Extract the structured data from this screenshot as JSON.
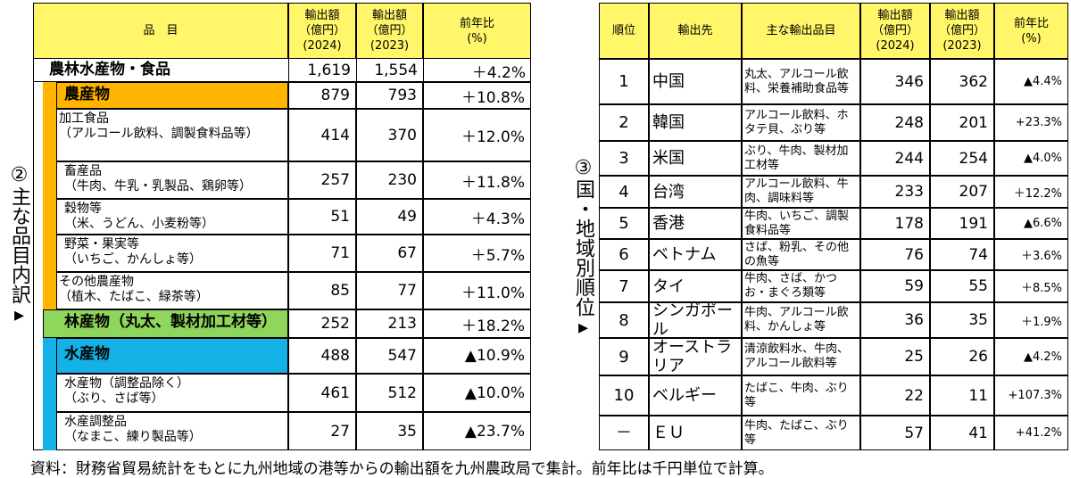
{
  "left_label": "②主な品目内訳▸",
  "right_label": "③国・地域別順位▸",
  "left_table": {
    "headers": {
      "item": "品　目",
      "export_2024": "輸出額\n（億円）\n(2024)",
      "export_2023": "輸出額\n（億円）\n(2023)",
      "yoy": "前年比\n(%)"
    },
    "rows": [
      {
        "label": "農林水産物・食品",
        "v2024": "1,619",
        "v2023": "1,554",
        "yoy": "＋4.2%"
      },
      {
        "label": "農産物",
        "v2024": "879",
        "v2023": "793",
        "yoy": "＋10.8%"
      },
      {
        "label": "加工食品\n（アルコール飲料、調製食料品等）",
        "v2024": "414",
        "v2023": "370",
        "yoy": "＋12.0%"
      },
      {
        "label": "畜産品\n（牛肉、牛乳・乳製品、鶏卵等）",
        "v2024": "257",
        "v2023": "230",
        "yoy": "＋11.8%"
      },
      {
        "label": "穀物等\n（米、うどん、小麦粉等）",
        "v2024": "51",
        "v2023": "49",
        "yoy": "＋4.3%"
      },
      {
        "label": "野菜・果実等\n（いちご、かんしょ等）",
        "v2024": "71",
        "v2023": "67",
        "yoy": "＋5.7%"
      },
      {
        "label": "その他農産物\n（植木、たばこ、緑茶等）",
        "v2024": "85",
        "v2023": "77",
        "yoy": "＋11.0%"
      },
      {
        "label": "林産物（丸太、製材加工材等）",
        "v2024": "252",
        "v2023": "213",
        "yoy": "＋18.2%"
      },
      {
        "label": "水産物",
        "v2024": "488",
        "v2023": "547",
        "yoy": "▲10.9%"
      },
      {
        "label": "水産物（調整品除く）\n（ぶり、さば等）",
        "v2024": "461",
        "v2023": "512",
        "yoy": "▲10.0%"
      },
      {
        "label": "水産調整品\n（なまこ、練り製品等）",
        "v2024": "27",
        "v2023": "35",
        "yoy": "▲23.7%"
      }
    ]
  },
  "right_table": {
    "headers": {
      "rank": "順位",
      "dest": "輸出先",
      "items": "主な輸出品目",
      "export_2024": "輸出額\n（億円）\n(2024)",
      "export_2023": "輸出額\n（億円）\n(2023)",
      "yoy": "前年比\n(%)"
    },
    "rows": [
      {
        "rank": "1",
        "dest": "中国",
        "items": "丸太、アルコール飲料、栄養補助食品等",
        "v2024": "346",
        "v2023": "362",
        "yoy": "▲4.4%"
      },
      {
        "rank": "2",
        "dest": "韓国",
        "items": "アルコール飲料、ホタテ貝、ぶり等",
        "v2024": "248",
        "v2023": "201",
        "yoy": "+23.3%"
      },
      {
        "rank": "3",
        "dest": "米国",
        "items": "ぶり、牛肉、製材加工材等",
        "v2024": "244",
        "v2023": "254",
        "yoy": "▲4.0%"
      },
      {
        "rank": "4",
        "dest": "台湾",
        "items": "アルコール飲料、牛肉、調味料等",
        "v2024": "233",
        "v2023": "207",
        "yoy": "＋12.2%"
      },
      {
        "rank": "5",
        "dest": "香港",
        "items": "牛肉、いちご、調製食料品等",
        "v2024": "178",
        "v2023": "191",
        "yoy": "▲6.6%"
      },
      {
        "rank": "6",
        "dest": "ベトナム",
        "items": "さば、粉乳、その他の魚等",
        "v2024": "76",
        "v2023": "74",
        "yoy": "＋3.6%"
      },
      {
        "rank": "7",
        "dest": "タイ",
        "items": "牛肉、さば、かつお・まぐろ類等",
        "v2024": "59",
        "v2023": "55",
        "yoy": "＋8.5%"
      },
      {
        "rank": "8",
        "dest": "シンガポール",
        "items": "牛肉、アルコール飲料、かんしょ等",
        "v2024": "36",
        "v2023": "35",
        "yoy": "＋1.9%"
      },
      {
        "rank": "9",
        "dest": "オーストラリア",
        "items": "清涼飲料水、牛肉、アルコール飲料等",
        "v2024": "25",
        "v2023": "26",
        "yoy": "▲4.2%"
      },
      {
        "rank": "10",
        "dest": "ベルギー",
        "items": "たばこ、牛肉、ぶり等",
        "v2024": "22",
        "v2023": "11",
        "yoy": "+107.3%"
      },
      {
        "rank": "－",
        "dest": "ＥＵ",
        "items": "牛肉、たばこ、ぶり等",
        "v2024": "57",
        "v2023": "41",
        "yoy": "+41.2%"
      }
    ]
  },
  "footnote": "資料：財務省貿易統計をもとに九州地域の港等からの輸出額を九州農政局で集計。前年比は千円単位で計算。",
  "colors": {
    "header": "#fff66a",
    "agri": "#ffb400",
    "forest": "#8fd65d",
    "fish": "#14b1e7"
  }
}
